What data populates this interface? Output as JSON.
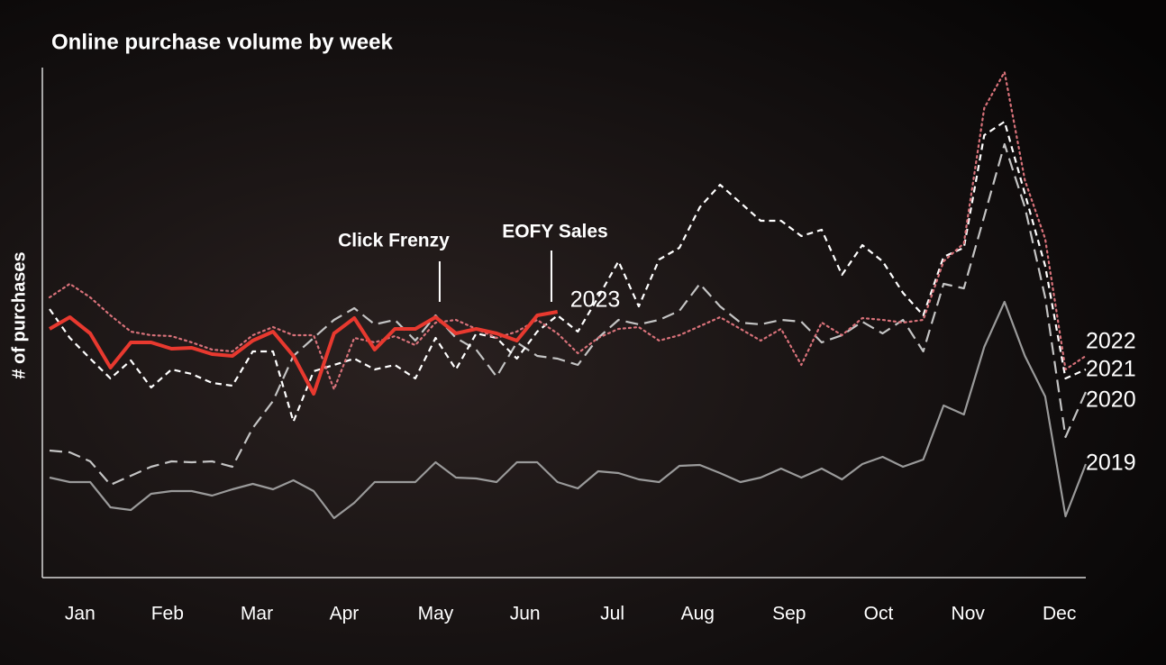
{
  "chart_data": {
    "type": "line",
    "title": "Online purchase volume by week",
    "y_label": "# of purchases",
    "x": [
      1,
      2,
      3,
      4,
      5,
      6,
      7,
      8,
      9,
      10,
      11,
      12,
      13,
      14,
      15,
      16,
      17,
      18,
      19,
      20,
      21,
      22,
      23,
      24,
      25,
      26,
      27,
      28,
      29,
      30,
      31,
      32,
      33,
      34,
      35,
      36,
      37,
      38,
      39,
      40,
      41,
      42,
      43,
      44,
      45,
      46,
      47,
      48,
      49,
      50,
      51,
      52
    ],
    "xlim": [
      1,
      52
    ],
    "xticks": [
      {
        "value": 2.5,
        "label": "Jan"
      },
      {
        "value": 6.8,
        "label": "Feb"
      },
      {
        "value": 11.2,
        "label": "Mar"
      },
      {
        "value": 15.5,
        "label": "Apr"
      },
      {
        "value": 20,
        "label": "May"
      },
      {
        "value": 24.4,
        "label": "Jun"
      },
      {
        "value": 28.7,
        "label": "Jul"
      },
      {
        "value": 32.9,
        "label": "Aug"
      },
      {
        "value": 37.4,
        "label": "Sep"
      },
      {
        "value": 41.8,
        "label": "Oct"
      },
      {
        "value": 46.2,
        "label": "Nov"
      },
      {
        "value": 50.7,
        "label": "Dec"
      }
    ],
    "ylim": [
      0,
      581
    ],
    "series": [
      {
        "name": "2019",
        "color": "#9a9a9a",
        "style": "solid",
        "values": [
          111,
          106,
          106,
          78,
          75,
          93,
          96,
          96,
          91,
          98,
          104,
          98,
          108,
          96,
          66,
          83,
          106,
          106,
          106,
          128,
          111,
          110,
          106,
          128,
          128,
          106,
          99,
          118,
          116,
          109,
          106,
          124,
          125,
          116,
          106,
          111,
          121,
          111,
          121,
          109,
          126,
          134,
          123,
          131,
          191,
          181,
          256,
          306,
          246,
          201,
          68,
          126
        ]
      },
      {
        "name": "2020",
        "color": "#c4c4c4",
        "style": "long-dashed",
        "values": [
          141,
          139,
          129,
          103,
          113,
          123,
          129,
          128,
          129,
          123,
          166,
          196,
          246,
          266,
          286,
          299,
          281,
          286,
          263,
          291,
          266,
          253,
          223,
          261,
          246,
          243,
          236,
          266,
          286,
          281,
          286,
          296,
          326,
          301,
          283,
          281,
          286,
          284,
          261,
          269,
          284,
          271,
          286,
          251,
          326,
          321,
          401,
          481,
          411,
          311,
          156,
          206
        ]
      },
      {
        "name": "2021",
        "color": "#ffffff",
        "style": "dashed",
        "values": [
          298,
          266,
          243,
          221,
          241,
          211,
          231,
          226,
          216,
          213,
          251,
          251,
          173,
          229,
          236,
          243,
          231,
          236,
          221,
          266,
          231,
          271,
          266,
          243,
          273,
          291,
          273,
          311,
          351,
          301,
          353,
          366,
          411,
          436,
          416,
          396,
          396,
          379,
          386,
          336,
          369,
          351,
          316,
          291,
          356,
          366,
          491,
          506,
          426,
          346,
          221,
          231
        ]
      },
      {
        "name": "2022",
        "color": "#d9727a",
        "style": "dotted",
        "values": [
          311,
          326,
          311,
          291,
          273,
          269,
          268,
          261,
          253,
          251,
          269,
          278,
          269,
          269,
          209,
          266,
          261,
          268,
          258,
          283,
          286,
          276,
          266,
          273,
          286,
          271,
          249,
          266,
          276,
          278,
          263,
          269,
          279,
          289,
          276,
          263,
          276,
          236,
          283,
          269,
          288,
          286,
          283,
          286,
          351,
          371,
          521,
          561,
          441,
          376,
          231,
          246
        ]
      },
      {
        "name": "2023",
        "color": "#e8392f",
        "style": "solid",
        "values": [
          276,
          289,
          271,
          233,
          261,
          261,
          254,
          255,
          248,
          246,
          263,
          273,
          246,
          204,
          271,
          288,
          253,
          276,
          276,
          289,
          271,
          276,
          271,
          263,
          291,
          295,
          null,
          null,
          null,
          null,
          null,
          null,
          null,
          null,
          null,
          null,
          null,
          null,
          null,
          null,
          null,
          null,
          null,
          null,
          null,
          null,
          null,
          null,
          null,
          null,
          null,
          null
        ]
      }
    ],
    "annotations": [
      {
        "text": "Click Frenzy",
        "x": 20.2
      },
      {
        "text": "EOFY Sales",
        "x": 25.7
      }
    ]
  }
}
